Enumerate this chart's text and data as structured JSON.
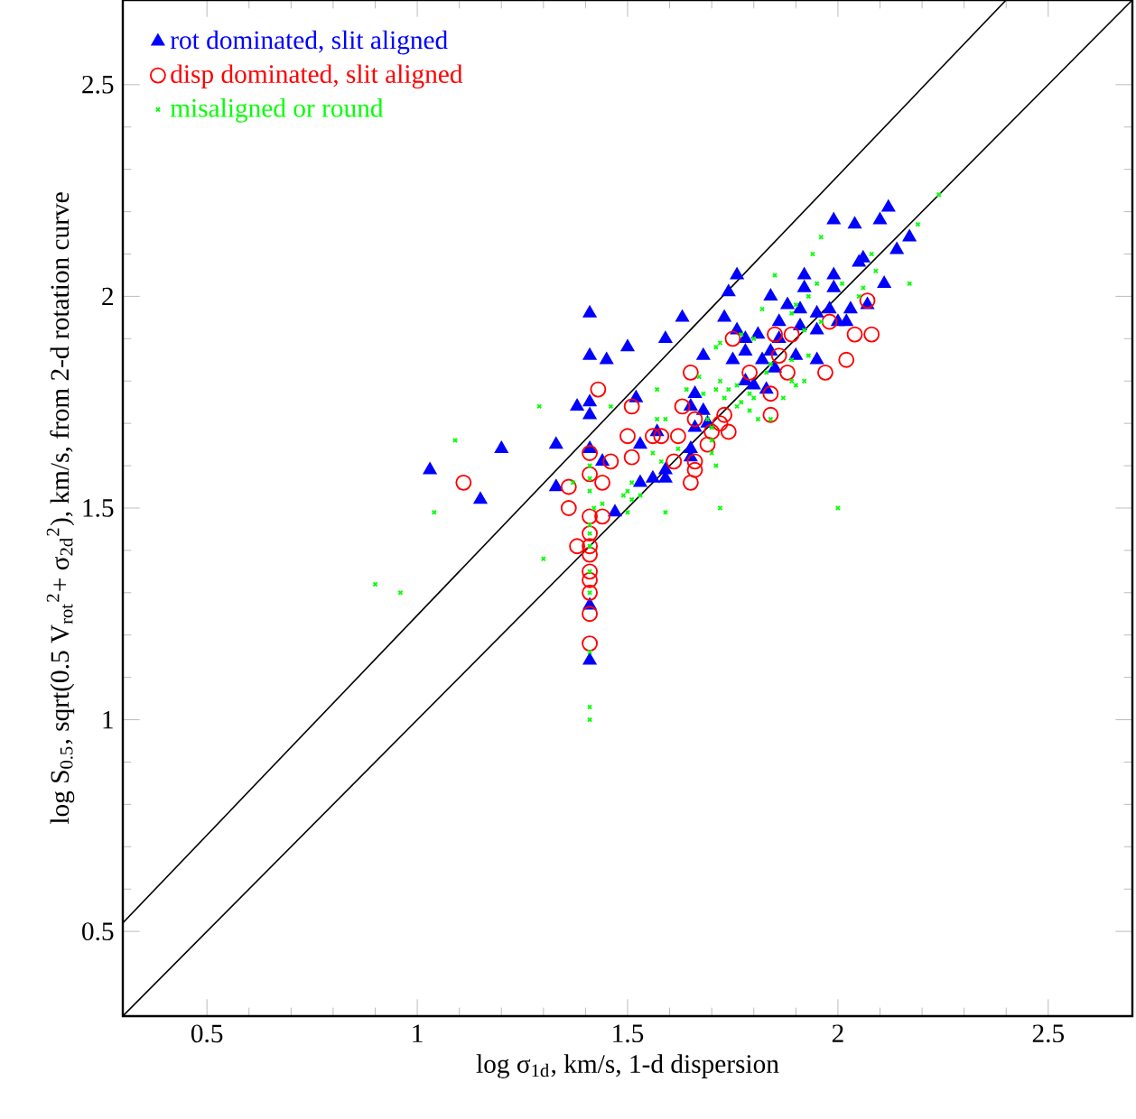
{
  "chart_data": {
    "type": "scatter",
    "xlabel": "log σ$_{1d}$, km/s, 1-d dispersion",
    "ylabel": "log S$_{0.5}$, sqrt(0.5 V$_{rot}$$^{2}$+ σ$_{2d}$$^{2}$), km/s, from 2-d rotation curve",
    "xlim": [
      0.3,
      2.7
    ],
    "ylim": [
      0.3,
      2.7
    ],
    "xticks": [
      0.5,
      1,
      1.5,
      2,
      2.5
    ],
    "yticks": [
      0.5,
      1,
      1.5,
      2,
      2.5
    ],
    "legend": "top left",
    "series": [
      {
        "name": "rot dominated, slit aligned",
        "color": "#0000ff",
        "marker": "triangle",
        "x": [
          1.41,
          1.41,
          1.45,
          1.5,
          1.38,
          1.41,
          1.41,
          1.2,
          1.33,
          1.41,
          1.44,
          1.03,
          1.15,
          1.33,
          1.52,
          1.53,
          1.47,
          1.41,
          1.41,
          2.12,
          1.99,
          2.04,
          2.1,
          2.17,
          2.14,
          2.06,
          2.05,
          1.76,
          1.92,
          1.99,
          2.11,
          1.74,
          1.92,
          1.99,
          1.84,
          1.88,
          1.91,
          1.98,
          1.95,
          2.03,
          2.07,
          1.63,
          1.73,
          1.86,
          2.0,
          2.02,
          1.91,
          1.59,
          1.78,
          1.81,
          1.86,
          1.76,
          1.95,
          1.68,
          1.75,
          1.78,
          1.82,
          1.84,
          1.9,
          1.95,
          1.85,
          1.66,
          1.8,
          1.83,
          1.78,
          1.65,
          1.68,
          1.69,
          1.66,
          1.57,
          1.53,
          1.65,
          1.65,
          1.59,
          1.56,
          1.59
        ],
        "values": [
          1.96,
          1.86,
          1.85,
          1.88,
          1.74,
          1.75,
          1.72,
          1.64,
          1.65,
          1.64,
          1.61,
          1.59,
          1.52,
          1.55,
          1.76,
          1.56,
          1.49,
          1.27,
          1.14,
          2.21,
          2.18,
          2.17,
          2.18,
          2.14,
          2.11,
          2.09,
          2.08,
          2.05,
          2.05,
          2.05,
          2.03,
          2.01,
          2.02,
          2.02,
          2.0,
          1.98,
          1.97,
          1.97,
          1.96,
          1.97,
          1.98,
          1.95,
          1.95,
          1.94,
          1.94,
          1.94,
          1.93,
          1.9,
          1.9,
          1.91,
          1.9,
          1.92,
          1.92,
          1.86,
          1.85,
          1.87,
          1.85,
          1.87,
          1.86,
          1.85,
          1.83,
          1.77,
          1.79,
          1.78,
          1.8,
          1.74,
          1.73,
          1.7,
          1.69,
          1.68,
          1.65,
          1.64,
          1.62,
          1.59,
          1.57,
          1.57
        ]
      },
      {
        "name": "disp dominated, slit aligned",
        "color": "#ff0000",
        "marker": "circle",
        "x": [
          1.43,
          1.51,
          1.41,
          1.5,
          1.56,
          1.51,
          1.46,
          1.41,
          1.44,
          1.36,
          1.11,
          1.36,
          1.41,
          1.44,
          1.38,
          1.41,
          1.41,
          1.41,
          1.41,
          1.41,
          1.41,
          1.41,
          1.41,
          2.07,
          2.08,
          2.04,
          2.02,
          1.97,
          1.85,
          1.75,
          1.86,
          1.89,
          1.98,
          1.79,
          1.88,
          1.84,
          1.84,
          1.65,
          1.63,
          1.66,
          1.73,
          1.72,
          1.74,
          1.7,
          1.62,
          1.58,
          1.69,
          1.61,
          1.66,
          1.66,
          1.65
        ],
        "values": [
          1.78,
          1.74,
          1.63,
          1.67,
          1.67,
          1.62,
          1.61,
          1.58,
          1.56,
          1.55,
          1.56,
          1.5,
          1.48,
          1.48,
          1.41,
          1.44,
          1.41,
          1.39,
          1.35,
          1.33,
          1.3,
          1.25,
          1.18,
          1.99,
          1.91,
          1.91,
          1.85,
          1.82,
          1.91,
          1.9,
          1.86,
          1.91,
          1.94,
          1.82,
          1.82,
          1.77,
          1.72,
          1.82,
          1.74,
          1.71,
          1.72,
          1.7,
          1.68,
          1.68,
          1.67,
          1.67,
          1.65,
          1.61,
          1.61,
          1.59,
          1.56
        ]
      },
      {
        "name": "misaligned or round",
        "color": "#00ff00",
        "marker": "cross",
        "x": [
          1.29,
          1.46,
          1.09,
          1.04,
          1.41,
          1.41,
          1.37,
          1.41,
          1.49,
          1.5,
          1.51,
          1.44,
          1.42,
          1.53,
          0.9,
          0.96,
          1.3,
          1.5,
          1.41,
          1.41,
          1.41,
          1.41,
          1.41,
          1.41,
          1.41,
          1.41,
          1.72,
          1.59,
          1.71,
          1.7,
          1.58,
          1.57,
          1.59,
          1.64,
          1.68,
          1.71,
          1.73,
          1.74,
          1.76,
          1.72,
          1.77,
          1.76,
          1.8,
          1.81,
          1.79,
          1.84,
          1.87,
          1.9,
          1.92,
          1.69,
          1.7,
          1.56,
          2.19,
          1.96,
          1.94,
          2.08,
          2.09,
          1.85,
          1.95,
          2.01,
          2.17,
          2.06,
          2.05,
          1.82,
          1.89,
          1.93,
          1.9,
          1.96,
          1.8,
          1.77,
          1.72,
          1.93,
          1.89,
          1.92,
          1.83,
          1.84,
          1.89,
          1.67,
          1.57,
          1.71,
          1.79,
          1.7,
          1.62,
          2.0,
          1.51,
          2.24
        ],
        "values": [
          1.74,
          1.74,
          1.66,
          1.49,
          1.6,
          1.57,
          1.56,
          1.54,
          1.53,
          1.54,
          1.56,
          1.51,
          1.5,
          1.53,
          1.32,
          1.3,
          1.38,
          1.49,
          1.46,
          1.44,
          1.41,
          1.35,
          1.3,
          1.16,
          1.03,
          1.0,
          1.5,
          1.49,
          1.6,
          1.63,
          1.61,
          1.71,
          1.71,
          1.78,
          1.77,
          1.78,
          1.76,
          1.78,
          1.79,
          1.8,
          1.75,
          1.74,
          1.76,
          1.71,
          1.73,
          1.71,
          1.76,
          1.79,
          1.8,
          1.71,
          1.66,
          1.63,
          2.17,
          2.14,
          2.1,
          2.1,
          2.06,
          2.05,
          2.03,
          2.03,
          2.03,
          2.02,
          2.0,
          1.97,
          1.96,
          2.0,
          1.98,
          1.94,
          1.9,
          1.91,
          1.89,
          1.86,
          1.85,
          1.92,
          1.82,
          1.84,
          1.8,
          1.81,
          1.78,
          1.88,
          1.77,
          1.69,
          1.64,
          1.5,
          1.52,
          2.24
        ]
      },
      {
        "type": "line",
        "color": "#000000",
        "x": [
          0.3,
          2.4
        ],
        "values": [
          0.52,
          2.7
        ]
      },
      {
        "type": "line",
        "color": "#000000",
        "x": [
          0.3,
          2.7
        ],
        "values": [
          0.3,
          2.7
        ]
      }
    ]
  }
}
